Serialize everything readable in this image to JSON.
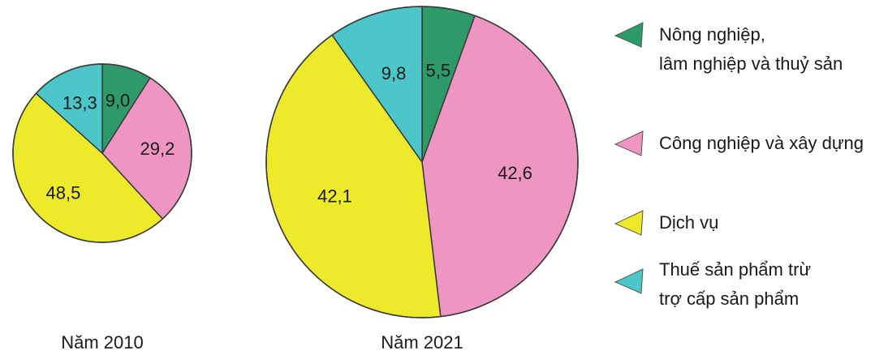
{
  "chart_data": {
    "type": "pie",
    "categories": [
      "Nông nghiệp, lâm nghiệp và thuỷ sản",
      "Công nghiệp và xây dựng",
      "Dịch vụ",
      "Thuế sản phẩm trừ trợ cấp sản phẩm"
    ],
    "legend_lines": [
      [
        "Nông nghiệp,",
        "lâm nghiệp và thuỷ sản"
      ],
      [
        "Công nghiệp và xây dựng"
      ],
      [
        "Dịch vụ"
      ],
      [
        "Thuế sản phẩm trừ",
        "trợ cấp sản phẩm"
      ]
    ],
    "colors": [
      "#2e9a6a",
      "#ef95c2",
      "#ecea2a",
      "#4cc6c8"
    ],
    "legend_placement": "right",
    "series": [
      {
        "name": "Năm 2010",
        "values": [
          9.0,
          29.2,
          48.5,
          13.3
        ],
        "labels": [
          "9,0",
          "29,2",
          "48,5",
          "13,3"
        ]
      },
      {
        "name": "Năm 2021",
        "values": [
          5.5,
          42.6,
          42.1,
          9.8
        ],
        "labels": [
          "5,5",
          "42,6",
          "42,1",
          "9,8"
        ]
      }
    ]
  }
}
